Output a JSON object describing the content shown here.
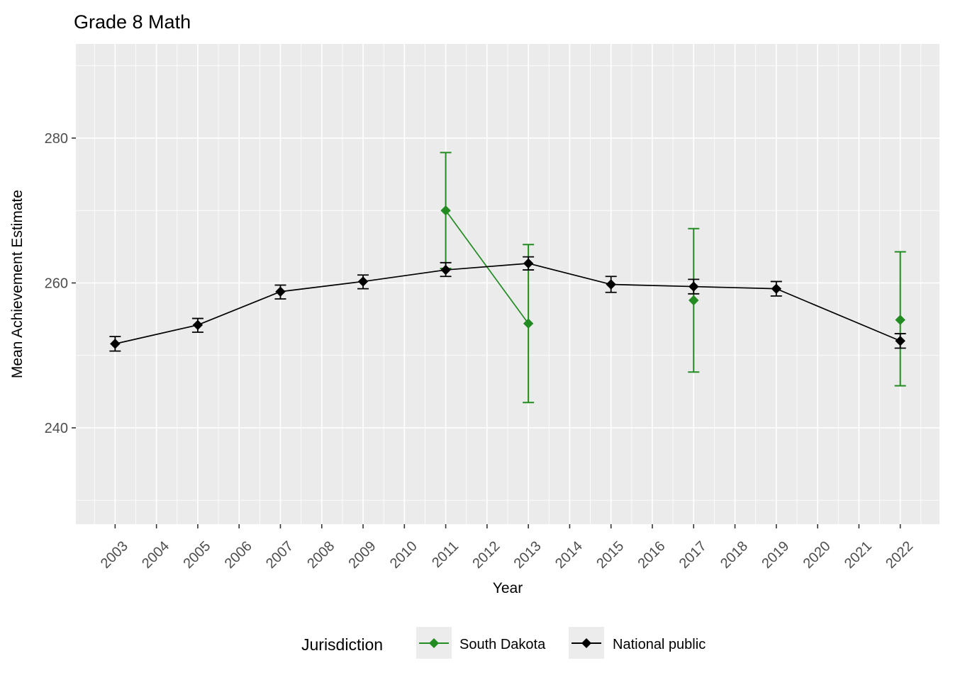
{
  "chart_data": {
    "type": "line",
    "title": "Grade 8 Math",
    "xlabel": "Year",
    "ylabel": "Mean Achievement Estimate",
    "legend_title": "Jurisdiction",
    "legend_position": "bottom",
    "grid": true,
    "panel_bg": "#EBEBEB",
    "grid_color": "#FFFFFF",
    "tick_color": "#333333",
    "tick_label_color": "#4D4D4D",
    "x_ticks": [
      2003,
      2004,
      2005,
      2006,
      2007,
      2008,
      2009,
      2010,
      2011,
      2012,
      2013,
      2014,
      2015,
      2016,
      2017,
      2018,
      2019,
      2020,
      2021,
      2022
    ],
    "y_ticks": [
      240,
      260,
      280
    ],
    "y_minor_ticks": [
      230,
      250,
      270,
      290
    ],
    "xlim": [
      2002.05,
      2022.95
    ],
    "ylim": [
      226.7,
      293.0
    ],
    "series": [
      {
        "name": "South Dakota",
        "color": "#228B22",
        "marker": "diamond",
        "segments": [
          [
            2011,
            2013
          ]
        ],
        "points": [
          {
            "x": 2011,
            "y": 270.0,
            "lo": 262.0,
            "hi": 278.0
          },
          {
            "x": 2013,
            "y": 254.4,
            "lo": 243.5,
            "hi": 265.3
          },
          {
            "x": 2017,
            "y": 257.6,
            "lo": 247.7,
            "hi": 267.5
          },
          {
            "x": 2022,
            "y": 254.9,
            "lo": 245.8,
            "hi": 264.3
          }
        ]
      },
      {
        "name": "National public",
        "color": "#000000",
        "marker": "diamond",
        "segments": "consecutive",
        "points": [
          {
            "x": 2003,
            "y": 251.6,
            "lo": 250.6,
            "hi": 252.6
          },
          {
            "x": 2005,
            "y": 254.2,
            "lo": 253.2,
            "hi": 255.1
          },
          {
            "x": 2007,
            "y": 258.8,
            "lo": 257.8,
            "hi": 259.7
          },
          {
            "x": 2009,
            "y": 260.2,
            "lo": 259.2,
            "hi": 261.1
          },
          {
            "x": 2011,
            "y": 261.8,
            "lo": 260.9,
            "hi": 262.8
          },
          {
            "x": 2013,
            "y": 262.7,
            "lo": 261.8,
            "hi": 263.6
          },
          {
            "x": 2015,
            "y": 259.8,
            "lo": 258.7,
            "hi": 260.9
          },
          {
            "x": 2017,
            "y": 259.5,
            "lo": 258.5,
            "hi": 260.5
          },
          {
            "x": 2019,
            "y": 259.2,
            "lo": 258.2,
            "hi": 260.2
          },
          {
            "x": 2022,
            "y": 252.0,
            "lo": 251.0,
            "hi": 253.0
          }
        ]
      }
    ]
  }
}
